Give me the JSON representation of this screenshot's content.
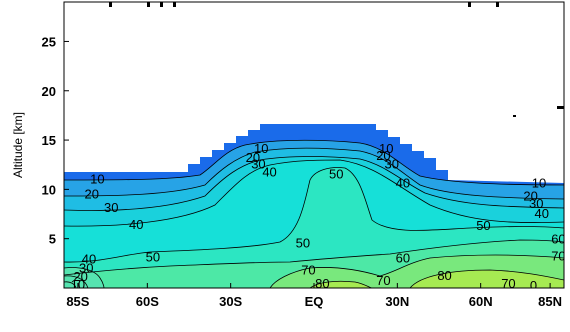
{
  "chart_data": {
    "type": "contour",
    "ylabel": "Altitude [km]",
    "xlabel": "",
    "title": "",
    "x_ticks": [
      "85S",
      "60S",
      "30S",
      "EQ",
      "30N",
      "60N",
      "85N"
    ],
    "x_tick_values": [
      -85,
      -60,
      -30,
      0,
      30,
      60,
      85
    ],
    "y_ticks": [
      "5",
      "10",
      "15",
      "20",
      "25"
    ],
    "y_tick_values": [
      5,
      10,
      15,
      20,
      25
    ],
    "xlim": [
      -90,
      90
    ],
    "ylim": [
      0,
      29
    ],
    "contour_levels": [
      10,
      20,
      30,
      40,
      50,
      60,
      70,
      80
    ],
    "contour_labels": [
      {
        "text": "10",
        "x": -78,
        "y": 11.1
      },
      {
        "text": "20",
        "x": -80,
        "y": 9.6
      },
      {
        "text": "30",
        "x": -73,
        "y": 8.2
      },
      {
        "text": "40",
        "x": -64,
        "y": 6.5
      },
      {
        "text": "50",
        "x": -58,
        "y": 3.2
      },
      {
        "text": "40",
        "x": -81,
        "y": 3.0
      },
      {
        "text": "30",
        "x": -82,
        "y": 2.1
      },
      {
        "text": "20",
        "x": -84,
        "y": 1.2
      },
      {
        "text": "10",
        "x": -85,
        "y": 0.4
      },
      {
        "text": "10",
        "x": -19,
        "y": 14.2
      },
      {
        "text": "20",
        "x": -22,
        "y": 13.3
      },
      {
        "text": "30",
        "x": -20,
        "y": 12.6
      },
      {
        "text": "40",
        "x": -16,
        "y": 11.8
      },
      {
        "text": "50",
        "x": 8,
        "y": 11.6
      },
      {
        "text": "50",
        "x": -4,
        "y": 4.6
      },
      {
        "text": "10",
        "x": 26,
        "y": 14.2
      },
      {
        "text": "20",
        "x": 25,
        "y": 13.5
      },
      {
        "text": "30",
        "x": 28,
        "y": 12.6
      },
      {
        "text": "40",
        "x": 32,
        "y": 10.7
      },
      {
        "text": "60",
        "x": 32,
        "y": 3.1
      },
      {
        "text": "70",
        "x": -2,
        "y": 1.9
      },
      {
        "text": "80",
        "x": 3,
        "y": 0.5
      },
      {
        "text": "70",
        "x": 25,
        "y": 0.8
      },
      {
        "text": "80",
        "x": 47,
        "y": 1.3
      },
      {
        "text": "70",
        "x": 70,
        "y": 0.5
      },
      {
        "text": "10",
        "x": 81,
        "y": 10.7
      },
      {
        "text": "20",
        "x": 78,
        "y": 9.4
      },
      {
        "text": "30",
        "x": 80,
        "y": 8.6
      },
      {
        "text": "40",
        "x": 82,
        "y": 7.6
      },
      {
        "text": "50",
        "x": 61,
        "y": 6.4
      },
      {
        "text": "60",
        "x": 88,
        "y": 5.0
      },
      {
        "text": "70",
        "x": 88,
        "y": 3.3
      },
      {
        "text": "0",
        "x": 79,
        "y": 0.3
      }
    ],
    "colors": {
      "top_band": "#1a6bea",
      "band_10": "#27a3e6",
      "band_20": "#1fbde4",
      "band_30": "#1ad1dc",
      "band_40": "#16e0d8",
      "band_50": "#2ce6c2",
      "band_60": "#4de8a6",
      "band_70": "#79e87d",
      "band_80": "#a6ea52"
    }
  }
}
